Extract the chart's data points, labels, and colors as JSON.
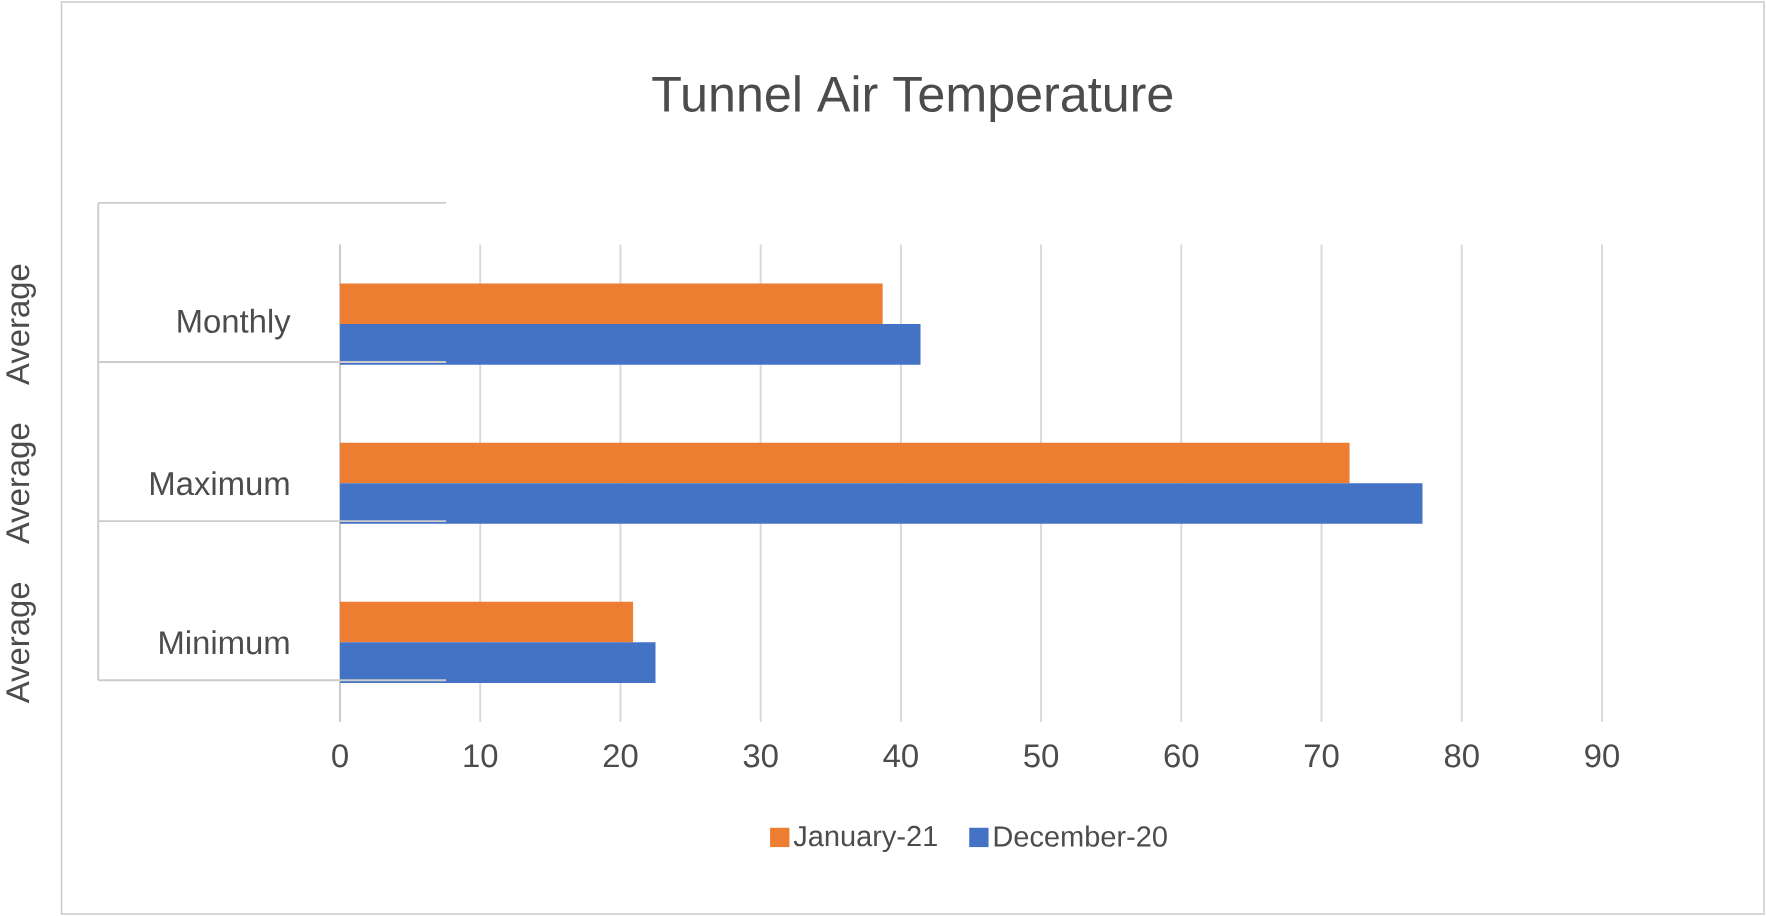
{
  "chart_data": {
    "type": "bar",
    "orientation": "horizontal",
    "title": "Tunnel Air Temperature",
    "categories": [
      "Monthly",
      "Maximum",
      "Minimum"
    ],
    "series": [
      {
        "name": "January-21",
        "color": "#ed7d31",
        "values": [
          38.7,
          72.0,
          20.9
        ]
      },
      {
        "name": "December-20",
        "color": "#4472c4",
        "values": [
          41.4,
          77.2,
          22.5
        ]
      }
    ],
    "annotations": [
      "Average",
      "Average",
      "Average"
    ],
    "xlim": [
      0,
      90
    ],
    "xticks": [
      0,
      10,
      20,
      30,
      40,
      50,
      60,
      70,
      80,
      90
    ],
    "grid": "x",
    "legend": "bottom"
  }
}
